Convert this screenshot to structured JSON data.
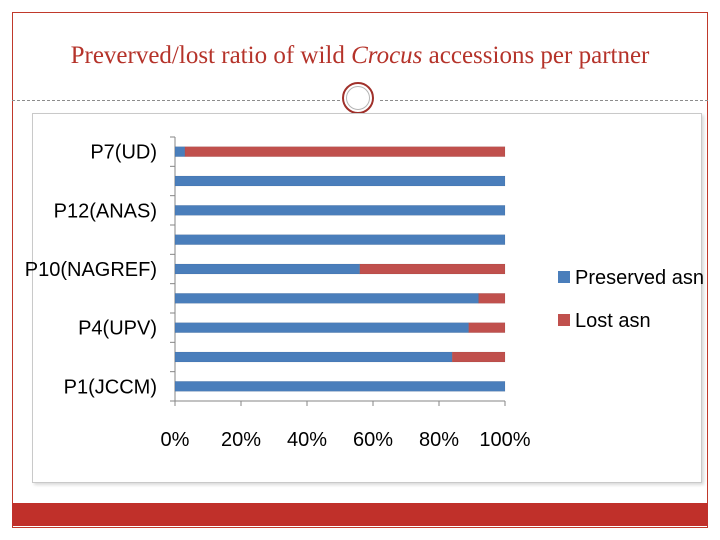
{
  "slide": {
    "title_before": "Preverved/lost ratio of wild ",
    "title_italic": "Crocus",
    "title_after": " accessions per partner",
    "accent_color": "#c0302a"
  },
  "chart_data": {
    "type": "bar",
    "orientation": "horizontal",
    "stacking": "percent",
    "categories": [
      "P1(JCCM)",
      "",
      "P4(UPV)",
      "",
      "P10(NAGREF)",
      "",
      "P12(ANAS)",
      "",
      "P7(UD)"
    ],
    "series": [
      {
        "name": "Preserved asn",
        "color": "#4a7ebb",
        "values": [
          100,
          84,
          89,
          92,
          56,
          100,
          100,
          100,
          3
        ]
      },
      {
        "name": "Lost asn",
        "color": "#c0504d",
        "values": [
          0,
          16,
          11,
          8,
          44,
          0,
          0,
          0,
          97
        ]
      }
    ],
    "x_ticks": [
      "0%",
      "20%",
      "40%",
      "60%",
      "80%",
      "100%"
    ],
    "xlim": [
      0,
      100
    ],
    "legend_position": "right",
    "grid": false
  }
}
